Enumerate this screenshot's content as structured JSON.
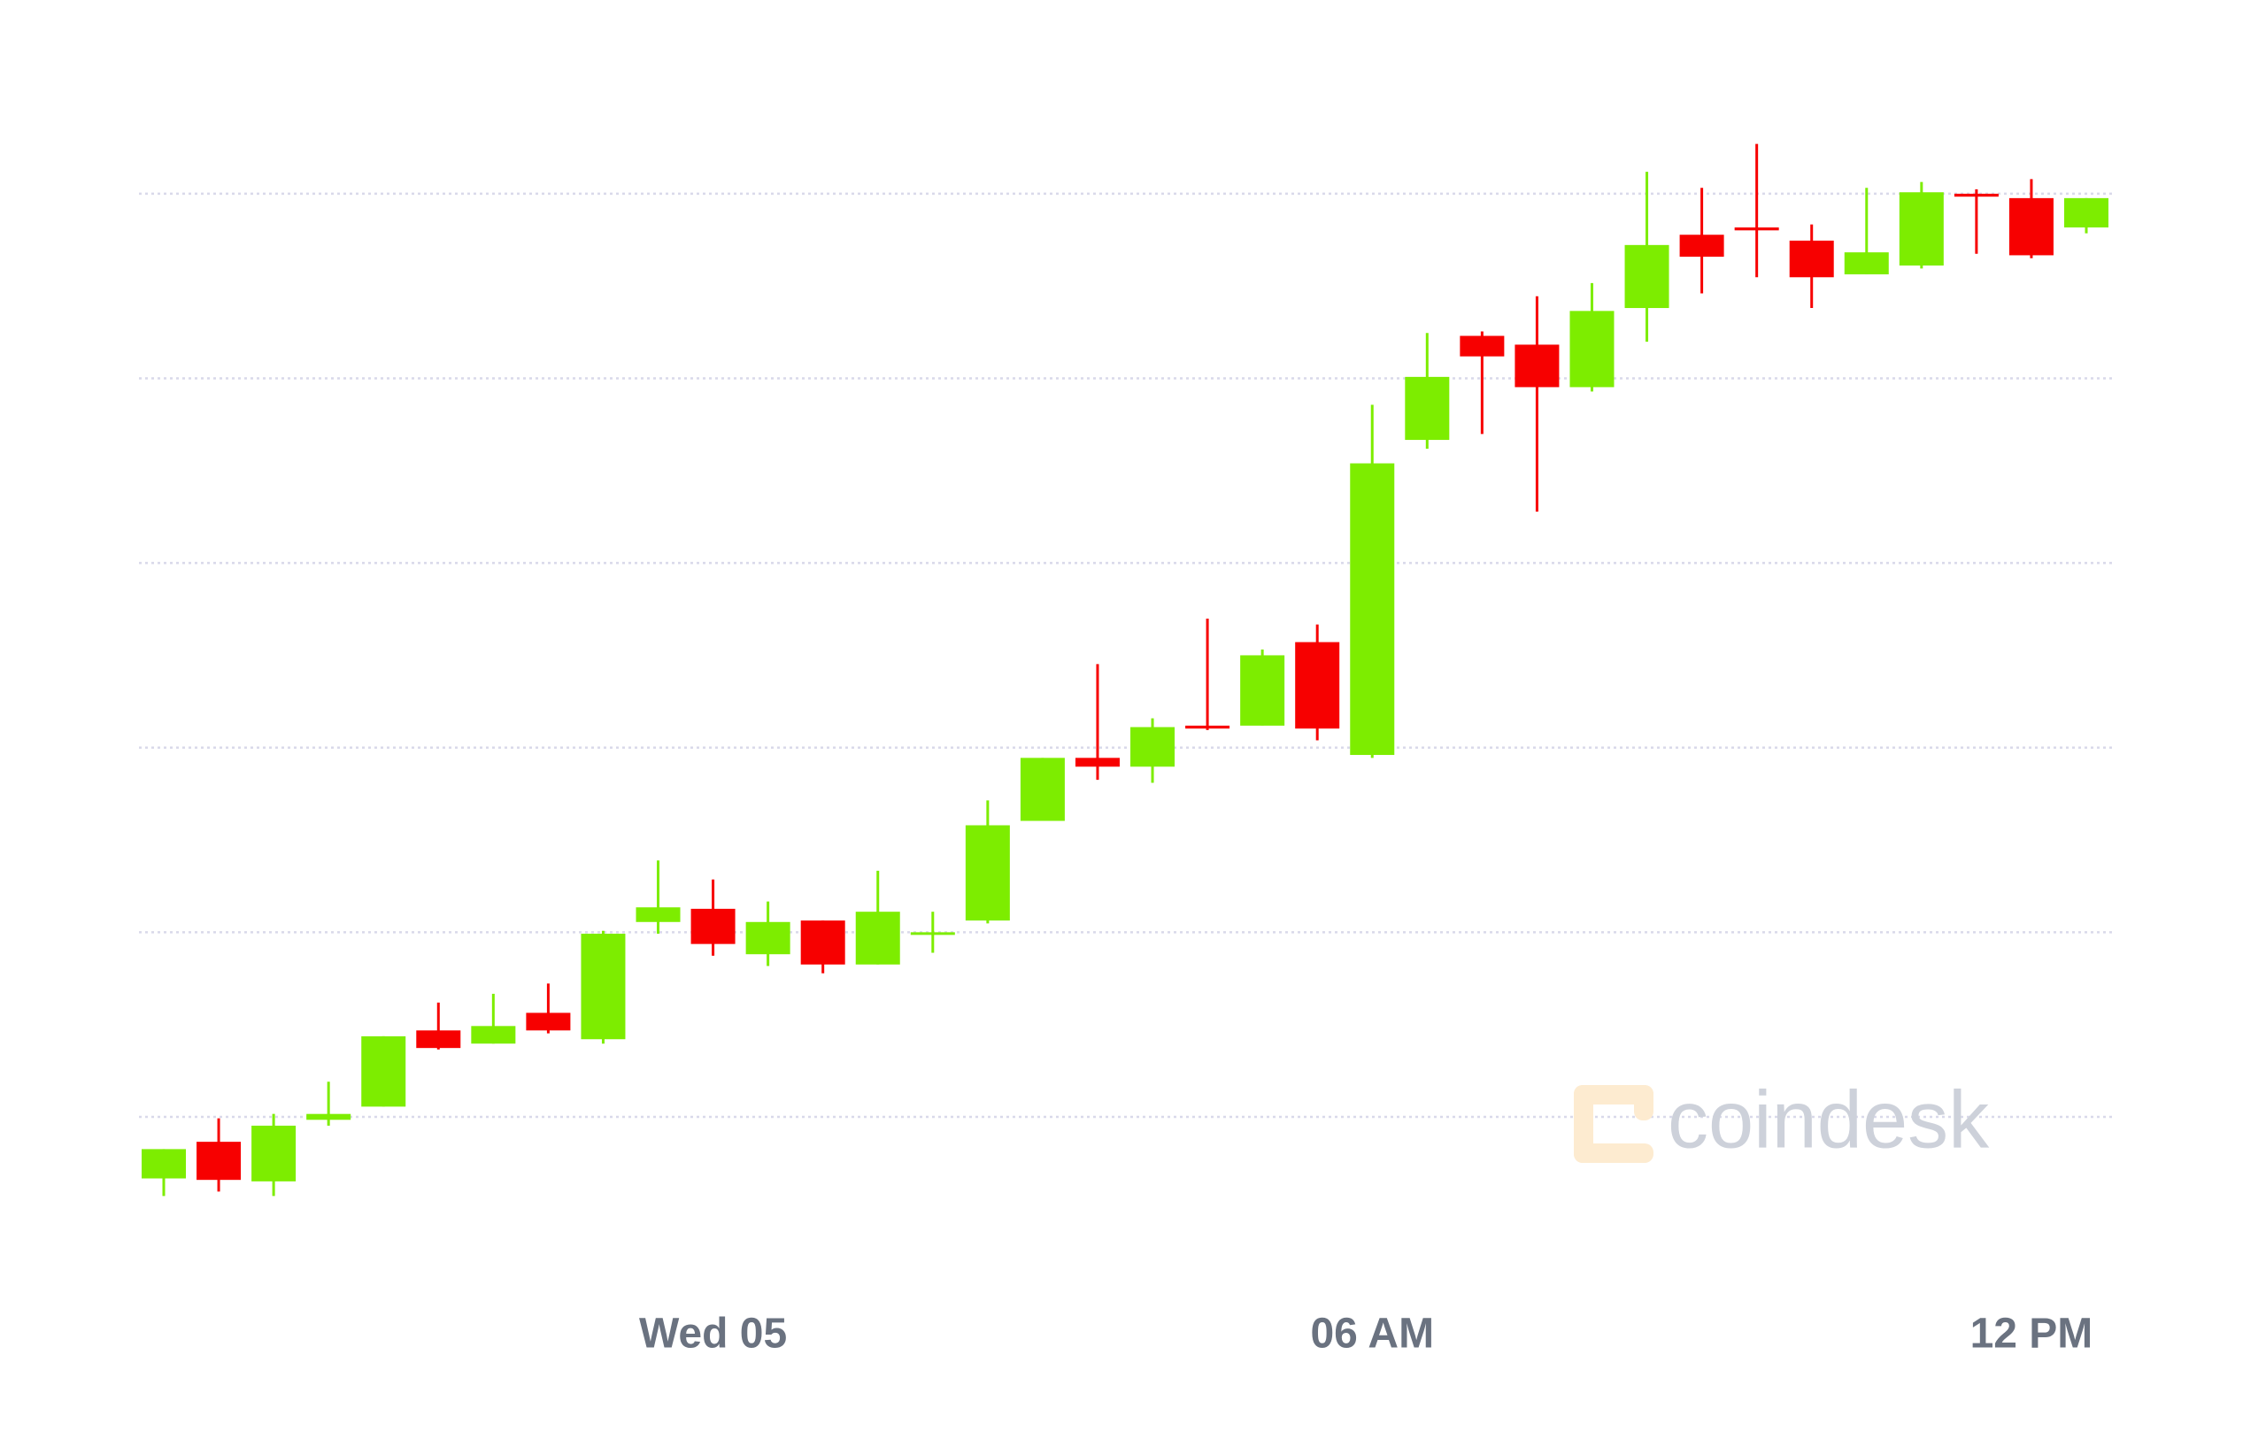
{
  "chart_data": {
    "type": "candlestick",
    "categories": [
      null,
      null,
      null,
      null,
      null,
      null,
      null,
      null,
      null,
      null,
      "Wed 05",
      null,
      null,
      null,
      null,
      null,
      null,
      null,
      null,
      null,
      null,
      null,
      "06 AM",
      null,
      null,
      null,
      null,
      null,
      null,
      null,
      null,
      null,
      null,
      null,
      "12 PM",
      null
    ],
    "open": [
      -42,
      -17,
      -44,
      -2,
      7,
      59,
      50,
      71,
      53,
      133,
      142,
      111,
      134,
      104,
      125,
      134,
      202,
      245,
      239,
      267,
      267,
      324,
      247,
      462,
      533,
      527,
      498,
      552,
      602,
      607,
      598,
      575,
      581,
      630,
      627,
      607
    ],
    "high": [
      -22,
      -1,
      2,
      24,
      55,
      78,
      84,
      91,
      127,
      175,
      162,
      147,
      134,
      168,
      140,
      216,
      245,
      309,
      272,
      340,
      319,
      336,
      486,
      535,
      536,
      560,
      569,
      645,
      634,
      664,
      609,
      634,
      638,
      633,
      640,
      627
    ],
    "low": [
      -54,
      -51,
      -54,
      -6,
      7,
      46,
      50,
      57,
      50,
      125,
      110,
      103,
      98,
      104,
      112,
      132,
      202,
      230,
      228,
      264,
      267,
      257,
      245,
      456,
      466,
      413,
      495,
      529,
      562,
      573,
      552,
      575,
      579,
      589,
      586,
      603
    ],
    "close": [
      -22,
      -43,
      -6,
      2,
      55,
      47,
      62,
      59,
      125,
      143,
      118,
      133,
      104,
      140,
      126,
      199,
      245,
      239,
      266,
      265,
      315,
      265,
      446,
      505,
      519,
      498,
      550,
      595,
      587,
      605,
      573,
      590,
      631,
      628,
      588,
      627
    ],
    "up_color": "#7ded00",
    "down_color": "#f70000",
    "ylim": [
      -90,
      700
    ],
    "yticks": [
      0,
      126,
      252,
      378,
      504,
      630
    ],
    "grid": true,
    "watermark": "coindesk"
  }
}
